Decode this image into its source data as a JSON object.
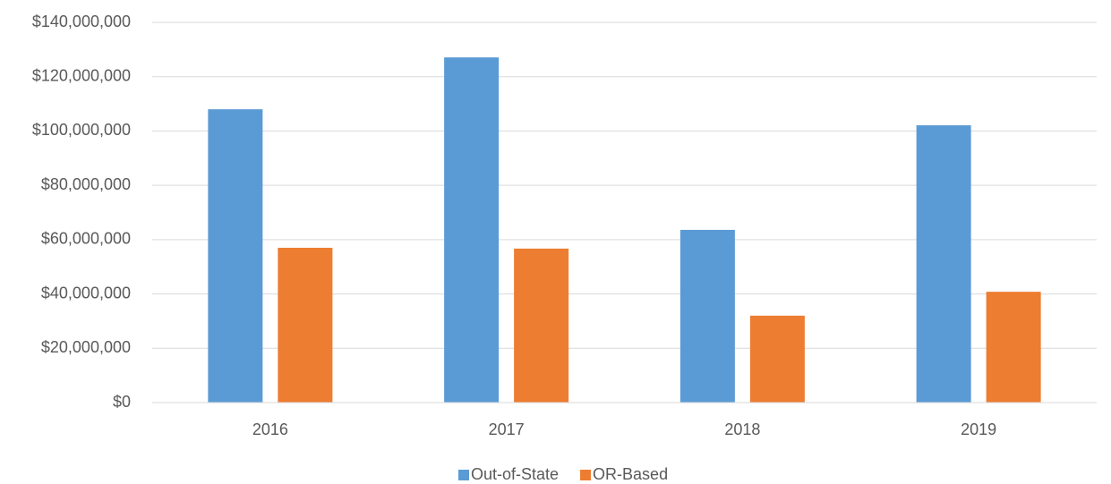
{
  "chart_data": {
    "type": "bar",
    "categories": [
      "2016",
      "2017",
      "2018",
      "2019"
    ],
    "series": [
      {
        "name": "Out-of-State",
        "color": "#5b9bd5",
        "values": [
          108000000,
          127100000,
          63600000,
          102100000
        ]
      },
      {
        "name": "OR-Based",
        "color": "#ed7d31",
        "values": [
          57000000,
          56700000,
          32000000,
          40800000
        ]
      }
    ],
    "ylim": [
      0,
      140000000
    ],
    "yticks": [
      {
        "value": 0,
        "label": "$0"
      },
      {
        "value": 20000000,
        "label": "$20,000,000"
      },
      {
        "value": 40000000,
        "label": "$40,000,000"
      },
      {
        "value": 60000000,
        "label": "$60,000,000"
      },
      {
        "value": 80000000,
        "label": "$80,000,000"
      },
      {
        "value": 100000000,
        "label": "$100,000,000"
      },
      {
        "value": 120000000,
        "label": "$120,000,000"
      },
      {
        "value": 140000000,
        "label": "$140,000,000"
      }
    ],
    "grid": true,
    "legend": "bottom"
  }
}
